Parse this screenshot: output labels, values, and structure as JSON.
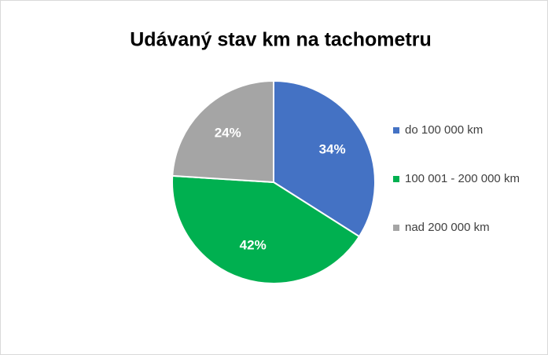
{
  "chart_data": {
    "type": "pie",
    "title": "Udávaný stav km na tachometru",
    "categories": [
      "do 100 000 km",
      "100 001 - 200 000 km",
      "nad 200 000 km"
    ],
    "values": [
      34,
      42,
      24
    ],
    "value_labels": [
      "34%",
      "42%",
      "24%"
    ],
    "colors": [
      "#4472c4",
      "#00b050",
      "#a5a5a5"
    ],
    "legend": "right"
  }
}
